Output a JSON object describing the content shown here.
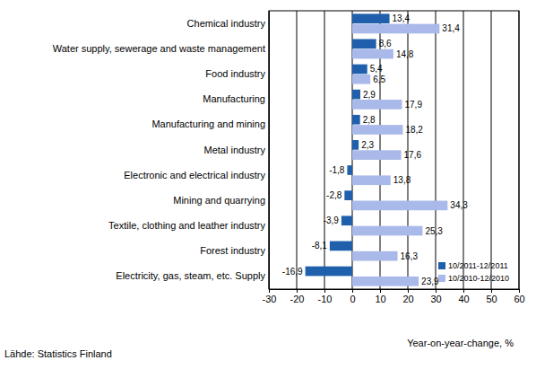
{
  "chart_data": {
    "type": "bar",
    "orientation": "horizontal",
    "categories": [
      "Chemical industry",
      "Water supply, sewerage and waste management",
      "Food industry",
      "Manufacturing",
      "Manufacturing and mining",
      "Metal industry",
      "Electronic and electrical industry",
      "Mining and quarrying",
      "Textile, clothing and leather industry",
      "Forest industry",
      "Electricity, gas, steam, etc. Supply"
    ],
    "series": [
      {
        "name": "10/2011-12/2011",
        "color": "#1f5fab",
        "values": [
          13.4,
          8.6,
          5.4,
          2.9,
          2.8,
          2.3,
          -1.8,
          -2.8,
          -3.9,
          -8.1,
          -16.9
        ],
        "value_labels": [
          "13,4",
          "8,6",
          "5,4",
          "2,9",
          "2,8",
          "2,3",
          "-1,8",
          "-2,8",
          "-3,9",
          "-8,1",
          "-16,9"
        ]
      },
      {
        "name": "10/2010-12/2010",
        "color": "#a9b9e9",
        "values": [
          31.4,
          14.8,
          6.5,
          17.9,
          18.2,
          17.6,
          13.8,
          34.3,
          25.3,
          16.3,
          23.9
        ],
        "value_labels": [
          "31,4",
          "14,8",
          "6,5",
          "17,9",
          "18,2",
          "17,6",
          "13,8",
          "34,3",
          "25,3",
          "16,3",
          "23,9"
        ]
      }
    ],
    "xlim": [
      -30,
      60
    ],
    "xticks": [
      -30,
      -20,
      -10,
      0,
      10,
      20,
      30,
      40,
      50,
      60
    ],
    "x_label": "Year-on-year-change, %",
    "source": "Lähde: Statistics Finland",
    "grid": true,
    "legend": "lower right",
    "data_labels": true
  }
}
